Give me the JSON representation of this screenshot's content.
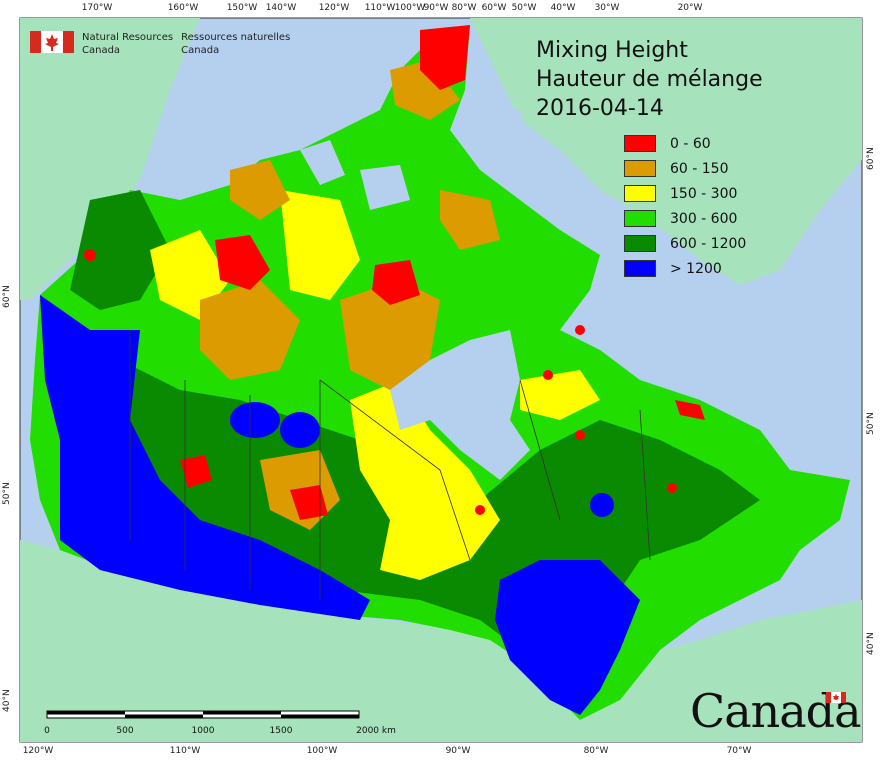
{
  "map": {
    "title_en": "Mixing Height",
    "title_fr": "Hauteur de mélange",
    "date": "2016-04-14",
    "organization_en_line1": "Natural Resources",
    "organization_en_line2": "Canada",
    "organization_fr_line1": "Ressources naturelles",
    "organization_fr_line2": "Canada",
    "wordmark": "Canada",
    "legend": [
      {
        "label": "0 - 60",
        "color": "#ff0000"
      },
      {
        "label": "60 - 150",
        "color": "#dc9b00"
      },
      {
        "label": "150 - 300",
        "color": "#ffff00"
      },
      {
        "label": "300 - 600",
        "color": "#22dd00"
      },
      {
        "label": "600 - 1200",
        "color": "#0a8a00"
      },
      {
        "label": "> 1200",
        "color": "#0000ff"
      }
    ],
    "scalebar": {
      "labels": [
        "0",
        "500",
        "1000",
        "1500",
        "2000 km"
      ]
    },
    "top_ticks": [
      "170°W",
      "160°W",
      "150°W",
      "140°W",
      "120°W",
      "110°W",
      "100°W",
      "90°W",
      "80°W",
      "60°W",
      "50°W",
      "40°W",
      "30°W",
      "20°W"
    ],
    "bottom_ticks": [
      "120°W",
      "110°W",
      "100°W",
      "90°W",
      "80°W",
      "70°W"
    ],
    "left_ticks": [
      "60°N",
      "50°N",
      "40°N"
    ],
    "right_ticks": [
      "60°N",
      "50°N",
      "40°N"
    ],
    "colors": {
      "ocean": "#b5d0ee",
      "land_other": "#a6e3bc",
      "boundary": "#333333"
    }
  }
}
